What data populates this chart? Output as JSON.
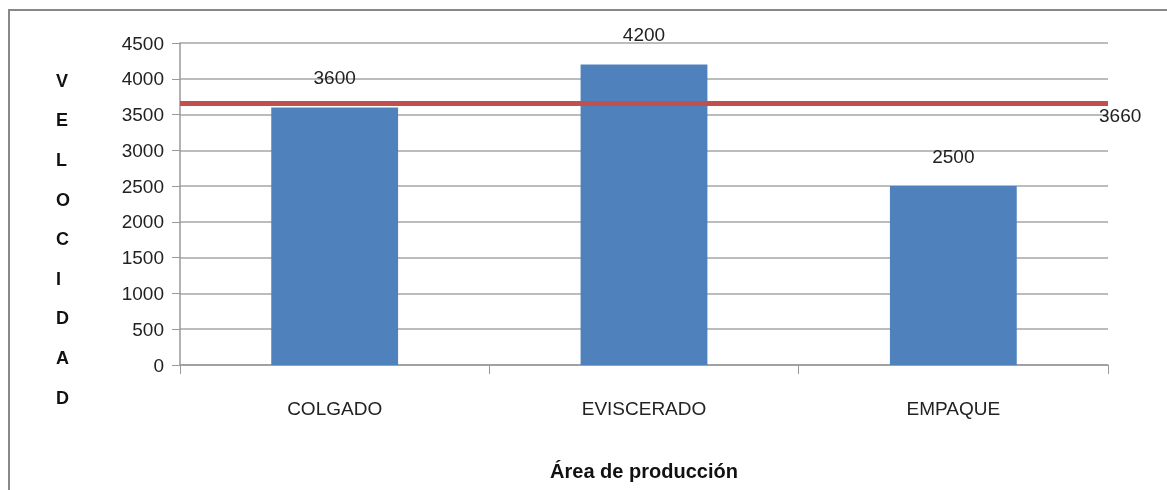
{
  "chart_data": {
    "type": "bar",
    "xlabel": "Área de producción",
    "ylabel": "VELOCIDAD",
    "categories": [
      "COLGADO",
      "EVISCERADO",
      "EMPAQUE"
    ],
    "values": [
      3600,
      4200,
      2500
    ],
    "color": "#4f81bd",
    "ylim": [
      0,
      4500
    ],
    "yticks": [
      0,
      500,
      1000,
      1500,
      2000,
      2500,
      3000,
      3500,
      4000,
      4500
    ],
    "grid": "y",
    "data_labels": true,
    "ref_lines": [
      {
        "axis": "y",
        "value": 3660,
        "label": "3660",
        "color": "#c0504d"
      }
    ]
  }
}
